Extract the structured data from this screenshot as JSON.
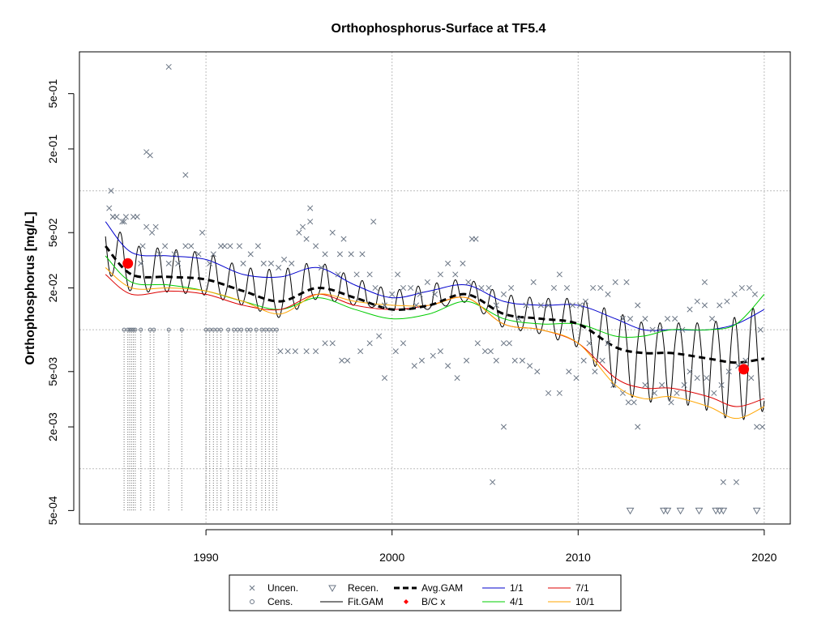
{
  "chart_data": {
    "type": "scatter",
    "title": "Orthophosphorus-Surface at TF5.4",
    "ylabel": "Orthophosphorus [mg/L]",
    "xlabel": "",
    "y_scale": "log",
    "xlim": [
      1983.2,
      2021.4
    ],
    "ylim": [
      0.0004,
      1.0
    ],
    "x_ticks": [
      1990,
      2000,
      2010,
      2020
    ],
    "x_tick_labels": [
      "1990",
      "2000",
      "2010",
      "2020"
    ],
    "y_tick_labels": [
      {
        "value": 0.0005,
        "label": "5e-04"
      },
      {
        "value": 0.002,
        "label": "2e-03"
      },
      {
        "value": 0.005,
        "label": "5e-03"
      },
      {
        "value": 0.02,
        "label": "2e-02"
      },
      {
        "value": 0.05,
        "label": "5e-02"
      },
      {
        "value": 0.2,
        "label": "2e-01"
      },
      {
        "value": 0.5,
        "label": "5e-01"
      }
    ],
    "y_grid": [
      0.001,
      0.01,
      0.1
    ],
    "x_grid": [
      1990,
      2000,
      2010,
      2020
    ],
    "grid": true,
    "legend_position": "bottom",
    "colors": {
      "points": "#6b7685",
      "fit": "#000000",
      "avg": "#000000",
      "bc": "#ff0000",
      "s1_1": "#0000cc",
      "s4_1": "#00cc00",
      "s7_1": "#dd0000",
      "s10_1": "#ffa500",
      "grid": "#bdbdbd"
    },
    "uncensored_points": [
      [
        1984.8,
        0.075
      ],
      [
        1985.0,
        0.065
      ],
      [
        1985.0,
        0.065
      ],
      [
        1984.9,
        0.1
      ],
      [
        1985.2,
        0.065
      ],
      [
        1985.5,
        0.06
      ],
      [
        1985.7,
        0.065
      ],
      [
        1986.1,
        0.065
      ],
      [
        1986.3,
        0.065
      ],
      [
        1986.6,
        0.04
      ],
      [
        1986.8,
        0.055
      ],
      [
        1987.1,
        0.05
      ],
      [
        1987.3,
        0.055
      ],
      [
        1987.5,
        0.035
      ],
      [
        1987.8,
        0.04
      ],
      [
        1988.0,
        0.03
      ],
      [
        1988.3,
        0.035
      ],
      [
        1988.5,
        0.03
      ],
      [
        1988.9,
        0.04
      ],
      [
        1989.2,
        0.04
      ],
      [
        1989.6,
        0.035
      ],
      [
        1989.8,
        0.05
      ],
      [
        1990.2,
        0.03
      ],
      [
        1990.4,
        0.035
      ],
      [
        1990.8,
        0.04
      ],
      [
        1991.0,
        0.04
      ],
      [
        1991.3,
        0.04
      ],
      [
        1991.8,
        0.04
      ],
      [
        1992.0,
        0.03
      ],
      [
        1992.4,
        0.035
      ],
      [
        1992.8,
        0.04
      ],
      [
        1993.1,
        0.03
      ],
      [
        1993.5,
        0.03
      ],
      [
        1993.9,
        0.028
      ],
      [
        1994.2,
        0.032
      ],
      [
        1994.6,
        0.03
      ],
      [
        1995.0,
        0.05
      ],
      [
        1995.2,
        0.055
      ],
      [
        1995.4,
        0.045
      ],
      [
        1995.6,
        0.06
      ],
      [
        1995.9,
        0.04
      ],
      [
        1996.2,
        0.028
      ],
      [
        1996.4,
        0.035
      ],
      [
        1996.8,
        0.05
      ],
      [
        1997.1,
        0.025
      ],
      [
        1997.4,
        0.045
      ],
      [
        1997.8,
        0.035
      ],
      [
        1998.1,
        0.025
      ],
      [
        1998.4,
        0.035
      ],
      [
        1998.8,
        0.025
      ],
      [
        1999.1,
        0.02
      ],
      [
        1999.6,
        0.015
      ],
      [
        2000.0,
        0.018
      ],
      [
        2000.3,
        0.025
      ],
      [
        2000.6,
        0.02
      ],
      [
        2001.0,
        0.02
      ],
      [
        2001.3,
        0.015
      ],
      [
        2001.5,
        0.018
      ],
      [
        2001.9,
        0.022
      ],
      [
        2002.3,
        0.018
      ],
      [
        2002.6,
        0.025
      ],
      [
        2003.0,
        0.03
      ],
      [
        2003.4,
        0.025
      ],
      [
        2003.8,
        0.03
      ],
      [
        2004.1,
        0.022
      ],
      [
        2004.3,
        0.045
      ],
      [
        2004.8,
        0.02
      ],
      [
        2005.2,
        0.02
      ],
      [
        2005.6,
        0.015
      ],
      [
        2006.0,
        0.018
      ],
      [
        2006.4,
        0.02
      ],
      [
        2006.8,
        0.012
      ],
      [
        2007.2,
        0.015
      ],
      [
        2007.6,
        0.022
      ],
      [
        2008.0,
        0.015
      ],
      [
        2008.4,
        0.015
      ],
      [
        2008.7,
        0.02
      ],
      [
        2009.0,
        0.025
      ],
      [
        2009.4,
        0.02
      ],
      [
        2009.7,
        0.015
      ],
      [
        2010.1,
        0.015
      ],
      [
        2010.4,
        0.016
      ],
      [
        2010.8,
        0.02
      ],
      [
        2011.2,
        0.02
      ],
      [
        2011.6,
        0.018
      ],
      [
        2012.0,
        0.022
      ],
      [
        2012.4,
        0.012
      ],
      [
        2012.8,
        0.012
      ],
      [
        2013.2,
        0.015
      ],
      [
        2013.6,
        0.012
      ],
      [
        2014.0,
        0.01
      ],
      [
        2014.4,
        0.01
      ],
      [
        2014.8,
        0.012
      ],
      [
        2015.2,
        0.012
      ],
      [
        2015.6,
        0.01
      ],
      [
        2016.0,
        0.014
      ],
      [
        2016.4,
        0.016
      ],
      [
        2016.8,
        0.015
      ],
      [
        2017.2,
        0.012
      ],
      [
        2017.6,
        0.015
      ],
      [
        2018.0,
        0.016
      ],
      [
        2018.4,
        0.018
      ],
      [
        2018.8,
        0.02
      ],
      [
        2019.2,
        0.02
      ],
      [
        2019.5,
        0.018
      ],
      [
        2019.8,
        0.01
      ],
      [
        1985.6,
        0.06
      ],
      [
        1986.5,
        0.03
      ],
      [
        1987.0,
        0.18
      ],
      [
        1986.8,
        0.19
      ],
      [
        1988.9,
        0.13
      ],
      [
        1988.0,
        0.78
      ],
      [
        1995.6,
        0.075
      ],
      [
        1997.2,
        0.035
      ],
      [
        1999.0,
        0.06
      ],
      [
        2004.5,
        0.045
      ],
      [
        2012.6,
        0.022
      ],
      [
        2016.8,
        0.022
      ],
      [
        1994.0,
        0.007
      ],
      [
        1994.4,
        0.007
      ],
      [
        1994.8,
        0.007
      ],
      [
        1995.4,
        0.007
      ],
      [
        1995.9,
        0.007
      ],
      [
        1996.4,
        0.008
      ],
      [
        1996.8,
        0.008
      ],
      [
        1997.3,
        0.006
      ],
      [
        1997.6,
        0.006
      ],
      [
        1998.3,
        0.007
      ],
      [
        1998.8,
        0.008
      ],
      [
        1999.3,
        0.009
      ],
      [
        1999.6,
        0.0045
      ],
      [
        2000.2,
        0.007
      ],
      [
        2000.6,
        0.008
      ],
      [
        2001.2,
        0.0055
      ],
      [
        2001.6,
        0.006
      ],
      [
        2002.2,
        0.0065
      ],
      [
        2002.6,
        0.007
      ],
      [
        2003.0,
        0.0055
      ],
      [
        2003.5,
        0.0045
      ],
      [
        2004.0,
        0.006
      ],
      [
        2004.6,
        0.008
      ],
      [
        2005.0,
        0.007
      ],
      [
        2005.3,
        0.007
      ],
      [
        2005.6,
        0.006
      ],
      [
        2006.0,
        0.008
      ],
      [
        2006.3,
        0.008
      ],
      [
        2006.6,
        0.006
      ],
      [
        2007.0,
        0.006
      ],
      [
        2007.4,
        0.0055
      ],
      [
        2007.8,
        0.005
      ],
      [
        2008.4,
        0.0035
      ],
      [
        2009.0,
        0.0035
      ],
      [
        2009.5,
        0.005
      ],
      [
        2009.9,
        0.0045
      ],
      [
        2010.3,
        0.006
      ],
      [
        2010.6,
        0.008
      ],
      [
        2010.9,
        0.005
      ],
      [
        2011.3,
        0.006
      ],
      [
        2011.6,
        0.008
      ],
      [
        2011.9,
        0.004
      ],
      [
        2012.4,
        0.0035
      ],
      [
        2012.7,
        0.003
      ],
      [
        2013.0,
        0.003
      ],
      [
        2013.2,
        0.002
      ],
      [
        2013.6,
        0.004
      ],
      [
        2014.1,
        0.0035
      ],
      [
        2014.5,
        0.004
      ],
      [
        2015.0,
        0.003
      ],
      [
        2015.3,
        0.0035
      ],
      [
        2015.7,
        0.004
      ],
      [
        2016.0,
        0.005
      ],
      [
        2016.4,
        0.0045
      ],
      [
        2016.9,
        0.0045
      ],
      [
        2017.3,
        0.0035
      ],
      [
        2017.7,
        0.004
      ],
      [
        2018.1,
        0.005
      ],
      [
        2018.6,
        0.0055
      ],
      [
        2019.0,
        0.006
      ],
      [
        2019.3,
        0.0045
      ],
      [
        2019.6,
        0.002
      ],
      [
        2019.9,
        0.002
      ],
      [
        2006.0,
        0.002
      ],
      [
        2005.4,
        0.0008
      ],
      [
        2017.8,
        0.0008
      ],
      [
        2018.5,
        0.0008
      ]
    ],
    "censored_x": [
      1985.6,
      1985.8,
      1985.9,
      1986.0,
      1986.1,
      1986.2,
      1986.5,
      1987.0,
      1987.2,
      1988.0,
      1988.7,
      1990.0,
      1990.2,
      1990.4,
      1990.6,
      1990.8,
      1991.2,
      1991.5,
      1991.7,
      1991.9,
      1992.2,
      1992.4,
      1992.7,
      1993.0,
      1993.2,
      1993.4,
      1993.6,
      1993.8
    ],
    "censored_value": 0.01,
    "recensored_points": [
      [
        2012.8,
        0.0005
      ],
      [
        2014.6,
        0.0005
      ],
      [
        2014.8,
        0.0005
      ],
      [
        2015.5,
        0.0005
      ],
      [
        2016.5,
        0.0005
      ],
      [
        2017.4,
        0.0005
      ],
      [
        2017.6,
        0.0005
      ],
      [
        2017.8,
        0.0005
      ],
      [
        2019.6,
        0.0005
      ]
    ],
    "bc_points": [
      [
        1985.8,
        0.03
      ],
      [
        2018.9,
        0.0052
      ]
    ],
    "series": [
      {
        "id": "s1_1",
        "x": [
          1984.6,
          1986,
          1988,
          1990,
          1992,
          1994,
          1996,
          1998,
          2000,
          2002,
          2004,
          2006,
          2008,
          2010,
          2012,
          2013.5,
          2015,
          2017,
          2018.5,
          2020
        ],
        "values": [
          0.06,
          0.036,
          0.034,
          0.032,
          0.025,
          0.024,
          0.028,
          0.021,
          0.017,
          0.019,
          0.021,
          0.016,
          0.015,
          0.015,
          0.012,
          0.01,
          0.01,
          0.01,
          0.011,
          0.014
        ]
      },
      {
        "id": "s4_1",
        "x": [
          1984.6,
          1986,
          1988,
          1990,
          1992,
          1994,
          1996,
          1998,
          2000,
          2002,
          2004,
          2006,
          2008,
          2010,
          2012,
          2013.5,
          2015,
          2017,
          2018.5,
          2020
        ],
        "values": [
          0.034,
          0.022,
          0.021,
          0.019,
          0.016,
          0.014,
          0.017,
          0.014,
          0.012,
          0.013,
          0.016,
          0.012,
          0.011,
          0.011,
          0.009,
          0.009,
          0.01,
          0.01,
          0.011,
          0.018
        ]
      },
      {
        "id": "s7_1",
        "x": [
          1984.6,
          1986,
          1988,
          1990,
          1992,
          1994,
          1996,
          1998,
          2000,
          2002,
          2004,
          2006,
          2008,
          2010,
          2012,
          2013.5,
          2015,
          2017,
          2018.5,
          2020
        ],
        "values": [
          0.025,
          0.018,
          0.019,
          0.018,
          0.015,
          0.014,
          0.018,
          0.015,
          0.014,
          0.015,
          0.017,
          0.011,
          0.01,
          0.008,
          0.0045,
          0.0038,
          0.0038,
          0.0033,
          0.0028,
          0.0032
        ]
      },
      {
        "id": "s10_1",
        "x": [
          1984.6,
          1986,
          1988,
          1990,
          1992,
          1994,
          1996,
          1998,
          2000,
          2002,
          2004,
          2006,
          2008,
          2010,
          2012,
          2013.5,
          2015,
          2017,
          2018.5,
          2020
        ],
        "values": [
          0.028,
          0.02,
          0.02,
          0.019,
          0.016,
          0.013,
          0.018,
          0.016,
          0.015,
          0.015,
          0.017,
          0.011,
          0.01,
          0.008,
          0.004,
          0.0032,
          0.0033,
          0.0028,
          0.0023,
          0.0028
        ]
      },
      {
        "id": "avg",
        "x": [
          1984.6,
          1986,
          1988,
          1990,
          1992,
          1994,
          1996,
          1998,
          2000,
          2002,
          2004,
          2006,
          2008,
          2010,
          2012,
          2013.5,
          2015,
          2017,
          2018.5,
          2020
        ],
        "values": [
          0.04,
          0.025,
          0.024,
          0.023,
          0.019,
          0.016,
          0.02,
          0.017,
          0.014,
          0.015,
          0.018,
          0.013,
          0.012,
          0.011,
          0.0075,
          0.0068,
          0.0068,
          0.0062,
          0.0058,
          0.0062
        ]
      }
    ],
    "legend": [
      {
        "label": "Uncen.",
        "glyph": "x-mark"
      },
      {
        "label": "Cens.",
        "glyph": "circle"
      },
      {
        "label": "Recen.",
        "glyph": "triangle-down"
      },
      {
        "label": "Fit.GAM",
        "glyph": "line-black"
      },
      {
        "label": "Avg.GAM",
        "glyph": "line-dashed"
      },
      {
        "label": "B/C x",
        "glyph": "diamond-red"
      },
      {
        "label": "1/1",
        "glyph": "line-blue"
      },
      {
        "label": "4/1",
        "glyph": "line-green"
      },
      {
        "label": "7/1",
        "glyph": "line-red"
      },
      {
        "label": "10/1",
        "glyph": "line-orange"
      }
    ]
  }
}
